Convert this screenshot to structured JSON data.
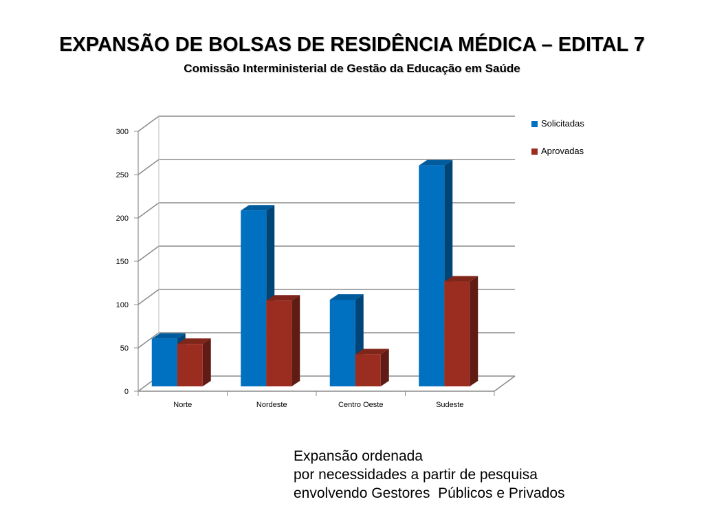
{
  "title": "EXPANSÃO DE BOLSAS DE RESIDÊNCIA MÉDICA – EDITAL 7",
  "subtitle": "Comissão Interministerial de Gestão da Educação em Saúde",
  "chart_data": {
    "type": "bar",
    "categories": [
      "Norte",
      "Nordeste",
      "Centro Oeste",
      "Sudeste"
    ],
    "series": [
      {
        "name": "Solicitadas",
        "values": [
          55,
          203,
          100,
          255
        ],
        "color": "#0070C0"
      },
      {
        "name": "Aprovadas",
        "values": [
          49,
          99,
          37,
          121
        ],
        "color": "#9B2D20"
      }
    ],
    "ylim": [
      0,
      300
    ],
    "yticks": [
      0,
      50,
      100,
      150,
      200,
      250,
      300
    ],
    "xlabel": "",
    "ylabel": "",
    "grid": true,
    "legend": "right",
    "style": "3d-clustered-column"
  },
  "note": {
    "lines": [
      "Expansão ordenada",
      "por necessidades a partir de pesquisa",
      "envolvendo Gestores  Públicos e Privados"
    ]
  }
}
